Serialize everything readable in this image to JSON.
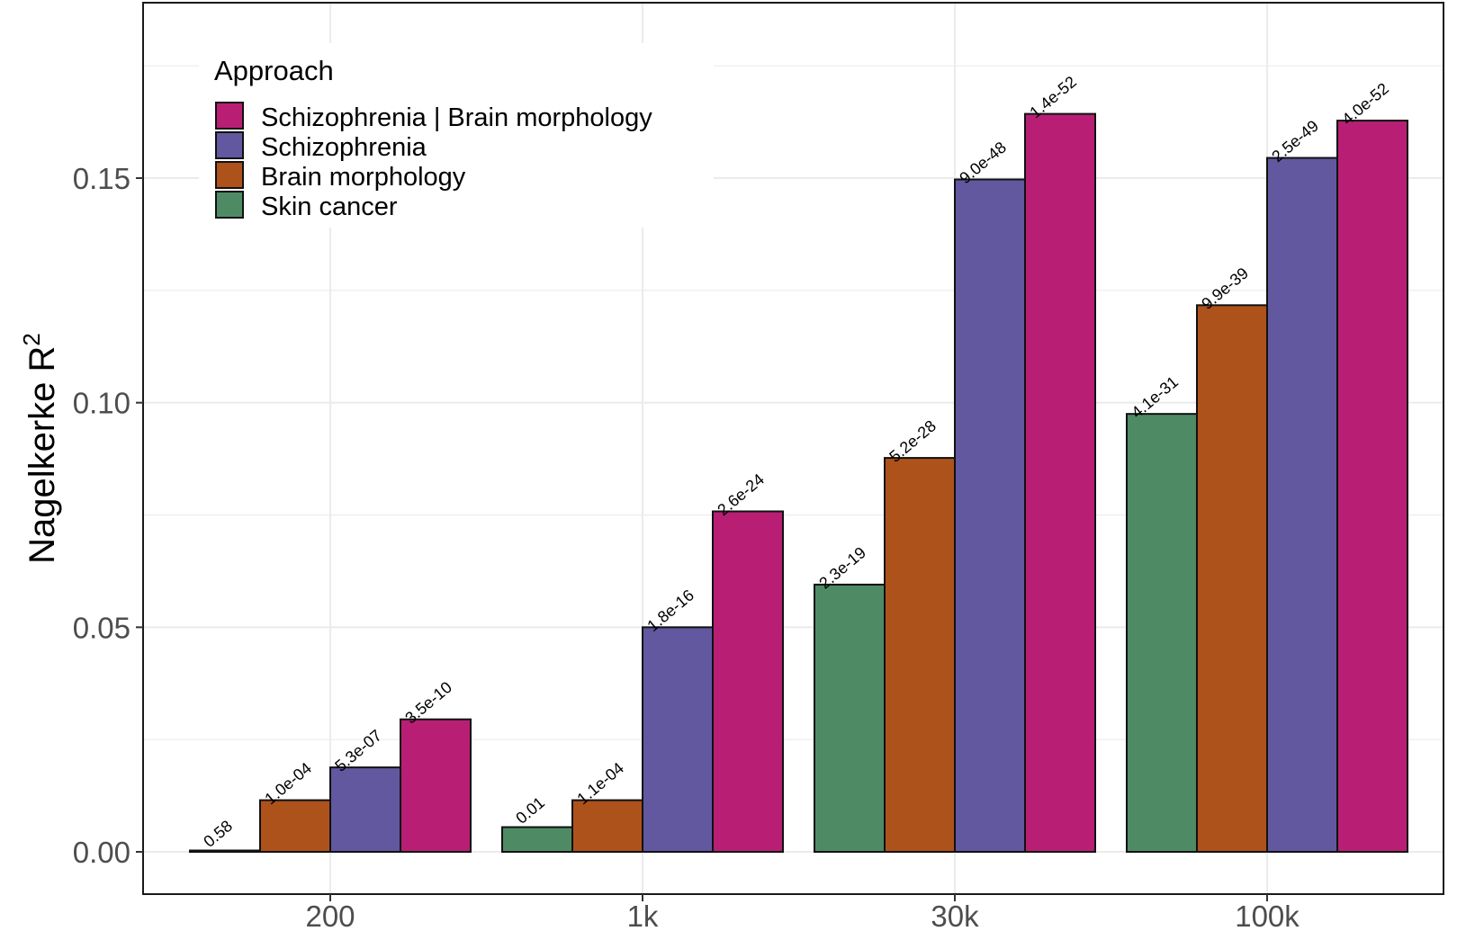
{
  "chart_data": {
    "type": "bar",
    "categories": [
      "200",
      "1k",
      "30k",
      "100k"
    ],
    "ylabel_main": "Nagelkerke R",
    "ylabel_sup": "2",
    "ylim": [
      -0.009,
      0.18
    ],
    "yticks": [
      0.0,
      0.05,
      0.1,
      0.15
    ],
    "ytick_labels": [
      "0.00",
      "0.05",
      "0.10",
      "0.15"
    ],
    "grid": true,
    "legend": {
      "title": "Approach",
      "placement": "top-left",
      "entries": [
        {
          "name": "Schizophrenia | Brain morphology",
          "color": "#B81F74"
        },
        {
          "name": "Schizophrenia",
          "color": "#6158A0"
        },
        {
          "name": "Brain morphology",
          "color": "#AE521C"
        },
        {
          "name": "Skin cancer",
          "color": "#4E8B65"
        }
      ]
    },
    "series": [
      {
        "name": "Skin cancer",
        "color": "#4E8B65",
        "values": [
          0.0003,
          0.0055,
          0.0595,
          0.0975
        ],
        "labels": [
          "0.58",
          "0.01",
          "2.3e-19",
          "4.1e-31"
        ]
      },
      {
        "name": "Brain morphology",
        "color": "#AE521C",
        "values": [
          0.0115,
          0.0115,
          0.0877,
          0.1217
        ],
        "labels": [
          "1.0e-04",
          "1.1e-04",
          "5.2e-28",
          "9.9e-39"
        ]
      },
      {
        "name": "Schizophrenia",
        "color": "#6158A0",
        "values": [
          0.0188,
          0.05,
          0.1497,
          0.1545
        ],
        "labels": [
          "5.3e-07",
          "1.8e-16",
          "9.0e-48",
          "2.5e-49"
        ]
      },
      {
        "name": "Schizophrenia | Brain morphology",
        "color": "#B81F74",
        "values": [
          0.0295,
          0.0758,
          0.1643,
          0.1628
        ],
        "labels": [
          "3.5e-10",
          "2.6e-24",
          "1.4e-52",
          "4.0e-52"
        ]
      }
    ]
  }
}
